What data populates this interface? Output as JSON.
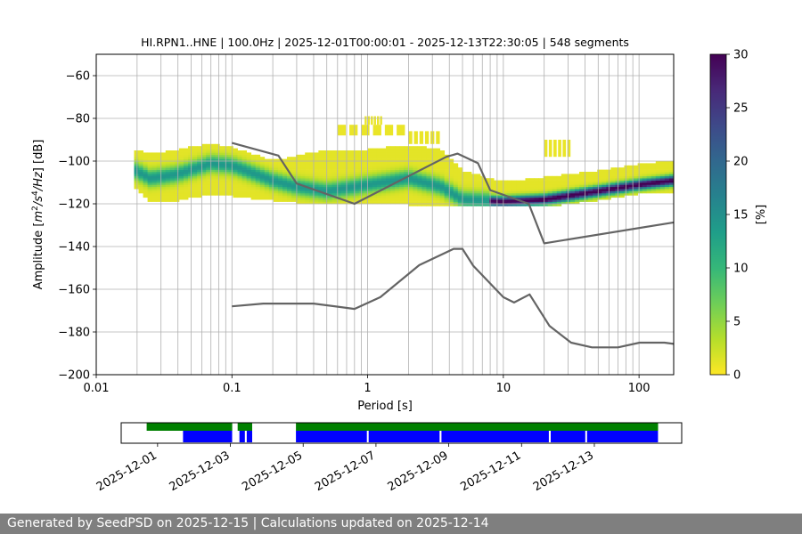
{
  "chart_data": [
    {
      "type": "heatmap",
      "title": "HI.RPN1..HNE | 100.0Hz | 2025-12-01T00:00:01 - 2025-12-13T22:30:05 | 548 segments",
      "xlabel": "Period [s]",
      "ylabel_parts": [
        "Amplitude [",
        "m",
        "2",
        "/",
        "s",
        "4",
        "/",
        "Hz",
        "] [dB]"
      ],
      "x_scale": "log",
      "xlim": [
        0.01,
        180
      ],
      "ylim": [
        -200,
        -50
      ],
      "x_ticks": [
        {
          "v": 0.01,
          "label": "0.01"
        },
        {
          "v": 0.1,
          "label": "0.1"
        },
        {
          "v": 1,
          "label": "1"
        },
        {
          "v": 10,
          "label": "10"
        },
        {
          "v": 100,
          "label": "100"
        }
      ],
      "y_ticks": [
        {
          "v": -60,
          "label": "−60"
        },
        {
          "v": -80,
          "label": "−80"
        },
        {
          "v": -100,
          "label": "−100"
        },
        {
          "v": -120,
          "label": "−120"
        },
        {
          "v": -140,
          "label": "−140"
        },
        {
          "v": -160,
          "label": "−160"
        },
        {
          "v": -180,
          "label": "−180"
        },
        {
          "v": -200,
          "label": "−200"
        }
      ],
      "grid": true,
      "colorbar": {
        "label": "[%]",
        "range": [
          0,
          30
        ],
        "ticks": [
          {
            "v": 0,
            "label": "0"
          },
          {
            "v": 5,
            "label": "5"
          },
          {
            "v": 10,
            "label": "10"
          },
          {
            "v": 15,
            "label": "15"
          },
          {
            "v": 20,
            "label": "20"
          },
          {
            "v": 25,
            "label": "25"
          },
          {
            "v": 30,
            "label": "30"
          }
        ],
        "colors": [
          "#fde725",
          "#b5de2b",
          "#6ece58",
          "#35b779",
          "#1f9e89",
          "#26828e",
          "#31688e",
          "#3e4989",
          "#482878",
          "#440154"
        ]
      },
      "density_band": [
        {
          "period": 0.019,
          "mode": -104,
          "lo": -112,
          "hi": -95
        },
        {
          "period": 0.025,
          "mode": -108,
          "lo": -119,
          "hi": -97
        },
        {
          "period": 0.04,
          "mode": -106,
          "lo": -118,
          "hi": -95
        },
        {
          "period": 0.07,
          "mode": -101,
          "lo": -115,
          "hi": -92
        },
        {
          "period": 0.1,
          "mode": -102,
          "lo": -116,
          "hi": -94
        },
        {
          "period": 0.2,
          "mode": -109,
          "lo": -118,
          "hi": -100
        },
        {
          "period": 0.3,
          "mode": -112,
          "lo": -119,
          "hi": -98
        },
        {
          "period": 0.5,
          "mode": -114,
          "lo": -120,
          "hi": -95
        },
        {
          "period": 1.0,
          "mode": -111,
          "lo": -120,
          "hi": -95
        },
        {
          "period": 2.0,
          "mode": -108,
          "lo": -120,
          "hi": -93
        },
        {
          "period": 3.5,
          "mode": -112,
          "lo": -121,
          "hi": -95
        },
        {
          "period": 5.0,
          "mode": -118,
          "lo": -121,
          "hi": -105
        },
        {
          "period": 10,
          "mode": -119,
          "lo": -121,
          "hi": -110
        },
        {
          "period": 20,
          "mode": -118,
          "lo": -121,
          "hi": -108
        },
        {
          "period": 50,
          "mode": -114,
          "lo": -118,
          "hi": -105
        },
        {
          "period": 100,
          "mode": -111,
          "lo": -115,
          "hi": -102
        },
        {
          "period": 180,
          "mode": -109,
          "lo": -114,
          "hi": -100
        }
      ],
      "outliers": [
        {
          "p0": 0.95,
          "p1": 1.3,
          "lo": -83,
          "hi": -79
        },
        {
          "p0": 0.6,
          "p1": 2.0,
          "lo": -88,
          "hi": -83
        },
        {
          "p0": 2.0,
          "p1": 3.5,
          "lo": -92,
          "hi": -86
        },
        {
          "p0": 20,
          "p1": 32,
          "lo": -98,
          "hi": -90
        }
      ],
      "series": [
        {
          "name": "",
          "color": "#646464",
          "x": [
            0.1,
            0.22,
            0.3,
            0.8,
            3.8,
            4.6,
            6.5,
            8,
            15.4,
            20,
            180
          ],
          "y": [
            -91.5,
            -97.4,
            -110.5,
            -120,
            -98,
            -96.5,
            -101,
            -113.6,
            -120,
            -138.5,
            -128.7
          ]
        },
        {
          "name": "",
          "color": "#646464",
          "x": [
            0.1,
            0.17,
            0.4,
            0.8,
            1.24,
            2.4,
            4.3,
            5,
            6,
            10,
            12,
            15.6,
            21.9,
            31.6,
            45,
            70,
            101,
            154,
            180
          ],
          "y": [
            -168,
            -166.7,
            -166.7,
            -169.2,
            -163.7,
            -148.7,
            -141.1,
            -141.1,
            -149,
            -163.7,
            -166.2,
            -162.4,
            -177.2,
            -185,
            -187.2,
            -187.2,
            -185,
            -185,
            -185.6
          ]
        }
      ]
    },
    {
      "type": "timeline",
      "x_ticks": [
        "2025-12-01",
        "2025-12-03",
        "2025-12-05",
        "2025-12-07",
        "2025-12-09",
        "2025-12-11",
        "2025-12-13"
      ],
      "x_tick_days": [
        1,
        3,
        5,
        7,
        9,
        11,
        13
      ],
      "xlim_days": [
        0.0,
        15.4
      ],
      "rows": [
        {
          "name": "",
          "color": "#008000",
          "segments": [
            [
              0.7,
              3.05
            ],
            [
              3.2,
              3.6
            ],
            [
              4.8,
              14.75
            ]
          ]
        },
        {
          "name": "",
          "color": "#0000ff",
          "segments": [
            [
              1.7,
              3.05
            ],
            [
              3.25,
              3.4
            ],
            [
              3.45,
              3.6
            ],
            [
              4.8,
              6.75
            ],
            [
              6.8,
              8.75
            ],
            [
              8.8,
              11.75
            ],
            [
              11.8,
              12.75
            ],
            [
              12.8,
              14.75
            ]
          ]
        }
      ]
    }
  ],
  "footer": {
    "text": "Generated by SeedPSD on 2025-12-15 | Calculations updated on 2025-12-14"
  }
}
